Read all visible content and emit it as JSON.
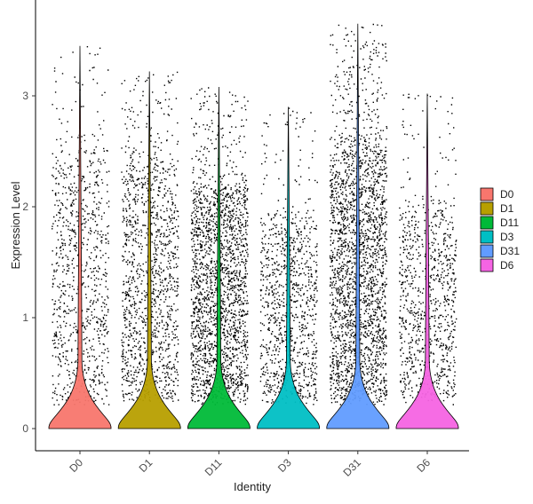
{
  "chart_data": {
    "type": "violin",
    "title": "",
    "xlabel": "Identity",
    "ylabel": "Expression Level",
    "ylim": [
      -0.2,
      3.8
    ],
    "yticks": [
      "0",
      "1",
      "2",
      "3"
    ],
    "grid": false,
    "legend_position": "right",
    "categories": [
      "D0",
      "D1",
      "D11",
      "D3",
      "D31",
      "D6"
    ],
    "series": [
      {
        "name": "D0",
        "color": "#F8766D",
        "max": 3.45,
        "spread_dense_top": 2.5,
        "n_points": 900
      },
      {
        "name": "D1",
        "color": "#B79F00",
        "max": 3.22,
        "spread_dense_top": 2.4,
        "n_points": 1300
      },
      {
        "name": "D11",
        "color": "#00BA38",
        "max": 3.08,
        "spread_dense_top": 2.2,
        "n_points": 2100
      },
      {
        "name": "D3",
        "color": "#00BFC4",
        "max": 2.9,
        "spread_dense_top": 1.9,
        "n_points": 1000
      },
      {
        "name": "D31",
        "color": "#619CFF",
        "max": 3.65,
        "spread_dense_top": 2.6,
        "n_points": 2400
      },
      {
        "name": "D6",
        "color": "#F564E3",
        "max": 3.02,
        "spread_dense_top": 2.0,
        "n_points": 900
      }
    ],
    "legend": [
      "D0",
      "D1",
      "D11",
      "D3",
      "D31",
      "D6"
    ]
  }
}
